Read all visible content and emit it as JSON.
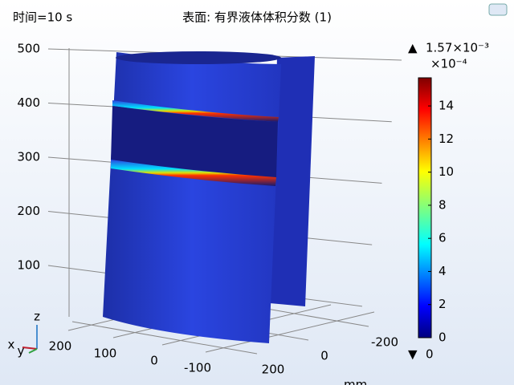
{
  "chart_data": {
    "type": "surface3d",
    "time_label": "时间=10 s",
    "title": "表面: 有界液体体积分数 (1)",
    "zticks": [
      100,
      200,
      300,
      400,
      500
    ],
    "zlim": [
      0,
      500
    ],
    "xticks": [
      200,
      100,
      0,
      -100
    ],
    "yticks": [
      200,
      0,
      -200
    ],
    "axis_unit": "mm",
    "triad": [
      "z",
      "x",
      "y"
    ],
    "colorbar": {
      "max_label": "1.57×10⁻³",
      "scale_label": "×10⁻⁴",
      "clim": [
        0,
        15.7
      ],
      "ticks": [
        0,
        2,
        4,
        6,
        8,
        10,
        12,
        14
      ],
      "min_label": "0"
    }
  }
}
